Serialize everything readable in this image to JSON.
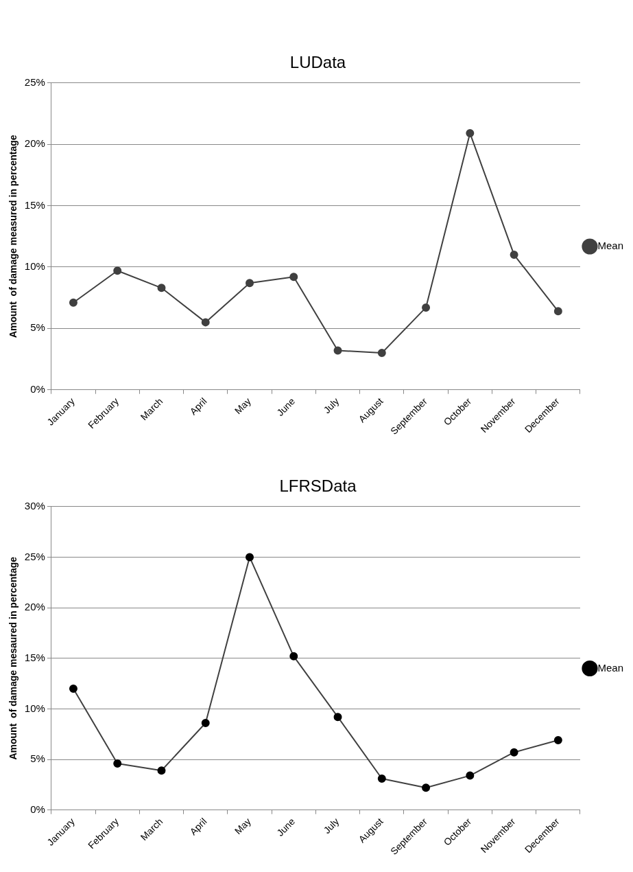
{
  "chart_data": [
    {
      "type": "line",
      "title": "LUData",
      "ylabel": "Amount  of damage measured in percentage",
      "categories": [
        "January",
        "February",
        "March",
        "April",
        "May",
        "June",
        "July",
        "August",
        "September",
        "October",
        "November",
        "December"
      ],
      "series": [
        {
          "name": "Mean",
          "color": "#404040",
          "values": [
            7.1,
            9.7,
            8.3,
            5.5,
            8.7,
            9.2,
            3.2,
            3.0,
            6.7,
            20.9,
            11.0,
            6.4
          ]
        }
      ],
      "ylim": [
        0,
        25
      ],
      "yticks": [
        {
          "value": 0,
          "label": "0%"
        },
        {
          "value": 5,
          "label": "5%"
        },
        {
          "value": 10,
          "label": "10%"
        },
        {
          "value": 15,
          "label": "15%"
        },
        {
          "value": 20,
          "label": "20%"
        },
        {
          "value": 25,
          "label": "25%"
        }
      ],
      "grid": "y",
      "legend": "right",
      "marker": "circle",
      "line_style": "solid"
    },
    {
      "type": "line",
      "title": "LFRSData",
      "ylabel": "Amount  of damage mesaured in percentage",
      "categories": [
        "January",
        "February",
        "March",
        "April",
        "May",
        "June",
        "July",
        "August",
        "September",
        "October",
        "November",
        "December"
      ],
      "series": [
        {
          "name": "Mean",
          "color": "#000000",
          "values": [
            12.0,
            4.6,
            3.9,
            8.6,
            25.0,
            15.2,
            9.2,
            3.1,
            2.2,
            3.4,
            5.7,
            6.9
          ]
        }
      ],
      "ylim": [
        0,
        30
      ],
      "yticks": [
        {
          "value": 0,
          "label": "0%"
        },
        {
          "value": 5,
          "label": "5%"
        },
        {
          "value": 10,
          "label": "10%"
        },
        {
          "value": 15,
          "label": "15%"
        },
        {
          "value": 20,
          "label": "20%"
        },
        {
          "value": 25,
          "label": "25%"
        },
        {
          "value": 30,
          "label": "30%"
        }
      ],
      "grid": "y",
      "legend": "right",
      "marker": "circle",
      "line_style": "solid"
    }
  ]
}
